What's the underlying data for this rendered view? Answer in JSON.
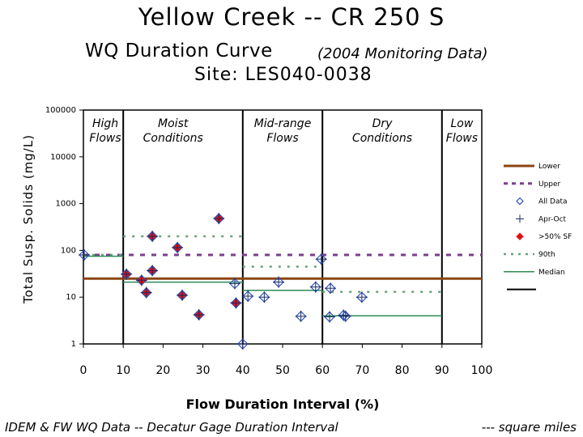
{
  "title_line1": "Yellow Creek -- CR 250 S",
  "title_line2": "WQ Duration Curve",
  "title_line2_note": "(2004 Monitoring Data)",
  "title_line3": "Site:  LES040-0038",
  "footer_left": "IDEM & FW WQ Data -- Decatur Gage Duration Interval",
  "footer_right": "--- square miles",
  "chart_data": {
    "type": "scatter",
    "xlabel": "Flow Duration Interval (%)",
    "ylabel": "Total Susp. Solids (mg/L)",
    "xlim": [
      0,
      100
    ],
    "ylim": [
      1,
      100000
    ],
    "yscale": "log",
    "x_ticks": [
      "0",
      "10",
      "20",
      "30",
      "40",
      "50",
      "60",
      "70",
      "80",
      "90",
      "100"
    ],
    "y_ticks": [
      "1",
      "10",
      "100",
      "1000",
      "10000",
      "100000"
    ],
    "y_tick_values": [
      1,
      10,
      100,
      1000,
      10000,
      100000
    ],
    "x_tick_values": [
      0,
      10,
      20,
      30,
      40,
      50,
      60,
      70,
      80,
      90,
      100
    ],
    "zone_boundaries": [
      10,
      40,
      60,
      90
    ],
    "zones": [
      {
        "label": "High\nFlows",
        "center": 5.5
      },
      {
        "label": "Moist\nConditions",
        "center": 22.5
      },
      {
        "label": "Mid-range\nFlows",
        "center": 50
      },
      {
        "label": "Dry\nConditions",
        "center": 75
      },
      {
        "label": "Low\nFlows",
        "center": 95
      }
    ],
    "legend_position": "right",
    "legend": [
      {
        "label": "Lower",
        "style": "solid-brown"
      },
      {
        "label": "Upper",
        "style": "dashed-purple"
      },
      {
        "label": "All Data",
        "style": "open-diamond"
      },
      {
        "label": "Apr-Oct",
        "style": "plus"
      },
      {
        "label": ">50% SF",
        "style": "red-diamond"
      },
      {
        "label": "90th",
        "style": "dotted-green"
      },
      {
        "label": "Median",
        "style": "solid-green"
      },
      {
        "label": "",
        "style": "solid-black"
      }
    ],
    "reference_lines": {
      "lower": 25,
      "upper": 80
    },
    "percentile_90": [
      {
        "x0": 0,
        "x1": 10,
        "y": 80
      },
      {
        "x0": 10,
        "x1": 40,
        "y": 200
      },
      {
        "x0": 40,
        "x1": 60,
        "y": 45
      },
      {
        "x0": 60,
        "x1": 90,
        "y": 13
      }
    ],
    "median": [
      {
        "x0": 0,
        "x1": 10,
        "y": 75
      },
      {
        "x0": 10,
        "x1": 40,
        "y": 21
      },
      {
        "x0": 40,
        "x1": 60,
        "y": 14
      },
      {
        "x0": 60,
        "x1": 90,
        "y": 4
      }
    ],
    "points": [
      {
        "x": 0.2,
        "y": 80,
        "apr_oct": true,
        "gt50sf": false
      },
      {
        "x": 10.8,
        "y": 31,
        "apr_oct": true,
        "gt50sf": true
      },
      {
        "x": 14.6,
        "y": 23,
        "apr_oct": true,
        "gt50sf": true
      },
      {
        "x": 15.8,
        "y": 12.5,
        "apr_oct": true,
        "gt50sf": true
      },
      {
        "x": 17.3,
        "y": 200,
        "apr_oct": true,
        "gt50sf": true
      },
      {
        "x": 17.3,
        "y": 37,
        "apr_oct": true,
        "gt50sf": true
      },
      {
        "x": 23.6,
        "y": 115,
        "apr_oct": true,
        "gt50sf": true
      },
      {
        "x": 24.8,
        "y": 11,
        "apr_oct": true,
        "gt50sf": true
      },
      {
        "x": 29.0,
        "y": 4.2,
        "apr_oct": true,
        "gt50sf": true
      },
      {
        "x": 34.0,
        "y": 480,
        "apr_oct": true,
        "gt50sf": true
      },
      {
        "x": 38.0,
        "y": 19.5,
        "apr_oct": true,
        "gt50sf": false
      },
      {
        "x": 38.3,
        "y": 7.5,
        "apr_oct": true,
        "gt50sf": true
      },
      {
        "x": 40.0,
        "y": 1,
        "apr_oct": true,
        "gt50sf": false
      },
      {
        "x": 41.3,
        "y": 10.5,
        "apr_oct": true,
        "gt50sf": false
      },
      {
        "x": 45.4,
        "y": 10,
        "apr_oct": true,
        "gt50sf": false
      },
      {
        "x": 49.0,
        "y": 21,
        "apr_oct": true,
        "gt50sf": false
      },
      {
        "x": 54.6,
        "y": 3.9,
        "apr_oct": true,
        "gt50sf": false
      },
      {
        "x": 58.3,
        "y": 16.5,
        "apr_oct": true,
        "gt50sf": false
      },
      {
        "x": 59.7,
        "y": 65,
        "apr_oct": true,
        "gt50sf": false
      },
      {
        "x": 62.0,
        "y": 15.5,
        "apr_oct": true,
        "gt50sf": false
      },
      {
        "x": 61.8,
        "y": 3.8,
        "apr_oct": true,
        "gt50sf": false
      },
      {
        "x": 65.3,
        "y": 4.1,
        "apr_oct": true,
        "gt50sf": false
      },
      {
        "x": 65.8,
        "y": 3.9,
        "apr_oct": true,
        "gt50sf": false
      },
      {
        "x": 69.9,
        "y": 10,
        "apr_oct": true,
        "gt50sf": false
      }
    ],
    "colors": {
      "lower": "#8B4513",
      "upper": "#7B3F8C",
      "diamond_open": "#3355BB",
      "plus": "#1a2a66",
      "diamond_red": "#e01010",
      "p90": "#6aa07a",
      "median": "#2e8b57"
    }
  }
}
